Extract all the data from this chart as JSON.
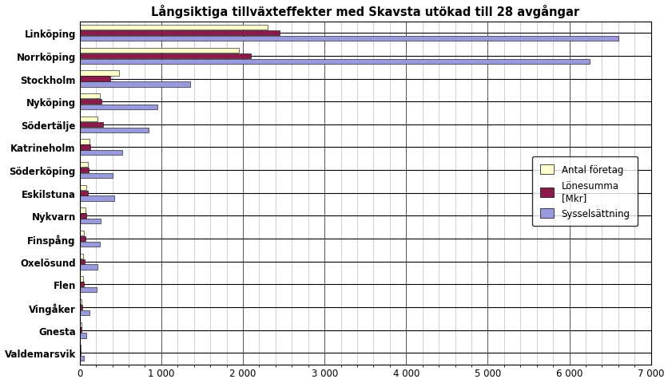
{
  "title": "Långsiktiga tillväxteffekter med Skavsta utökad till 28 avgångar",
  "categories": [
    "Linköping",
    "Norrköping",
    "Stockholm",
    "Nyköping",
    "Södertälje",
    "Katrineholm",
    "Söderköping",
    "Eskilstuna",
    "Nykvarn",
    "Finspång",
    "Oxelösund",
    "Flen",
    "Vingåker",
    "Gnesta",
    "Valdemarsvik"
  ],
  "antal_foretag": [
    2300,
    1950,
    480,
    250,
    220,
    120,
    100,
    80,
    70,
    55,
    45,
    40,
    22,
    18,
    10
  ],
  "lonesumma": [
    2450,
    2100,
    380,
    270,
    290,
    135,
    110,
    105,
    85,
    68,
    58,
    50,
    30,
    22,
    12
  ],
  "sysselsattning": [
    6600,
    6250,
    1350,
    950,
    850,
    520,
    400,
    420,
    260,
    250,
    220,
    210,
    120,
    80,
    50
  ],
  "color_antal": "#ffffcc",
  "color_lonesum": "#8b1a4a",
  "color_syssel": "#9999dd",
  "legend_labels": [
    "Antal företag",
    "Lönesumma\n[Mkr]",
    "Sysselsättning"
  ],
  "xlim": [
    0,
    7000
  ],
  "xticks": [
    0,
    1000,
    2000,
    3000,
    4000,
    5000,
    6000,
    7000
  ],
  "xtick_labels": [
    "0",
    "1 000",
    "2 000",
    "3 000",
    "4 000",
    "5 000",
    "6 000",
    "7 000"
  ],
  "bg_color": "#ffffff",
  "grid_color": "#aaaacc",
  "grid_color_major": "#000000"
}
